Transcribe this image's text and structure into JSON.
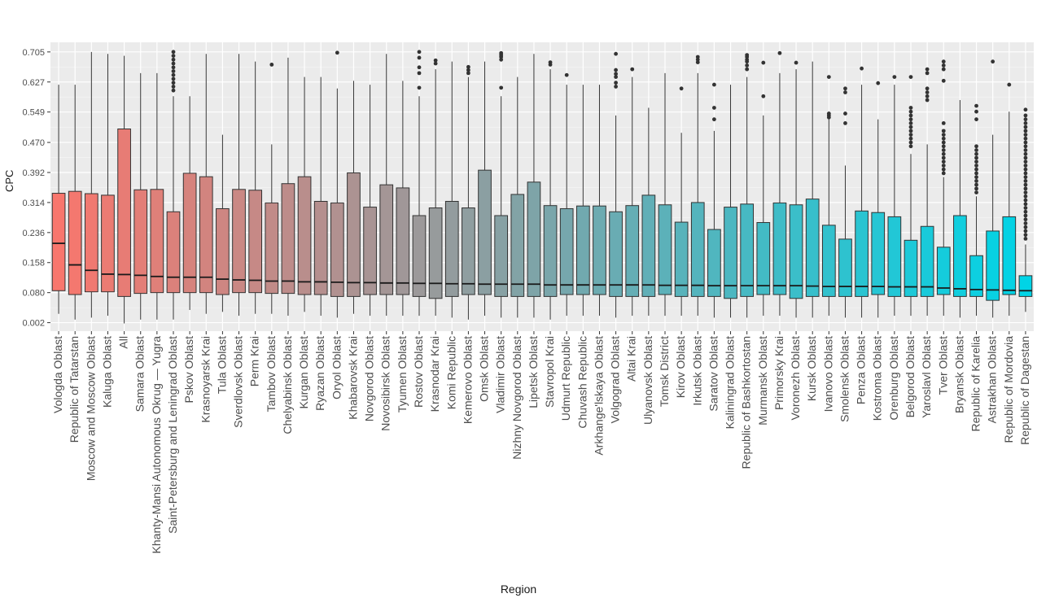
{
  "chart_data": {
    "type": "boxplot",
    "xlabel": "Region",
    "ylabel": "CPC",
    "yticks": [
      "0.002",
      "0.080",
      "0.158",
      "0.236",
      "0.314",
      "0.392",
      "0.470",
      "0.549",
      "0.627",
      "0.705"
    ],
    "ylim": [
      -0.02,
      0.73
    ],
    "fill_gradient": [
      "#f8766d",
      "#00d4e6"
    ],
    "grid": true,
    "legend": "none",
    "series": [
      {
        "category": "Vologda Oblast",
        "min": 0.025,
        "q1": 0.085,
        "median": 0.208,
        "q3": 0.338,
        "max": 0.62,
        "outliers": []
      },
      {
        "category": "Republic of Tatarstan",
        "min": 0.01,
        "q1": 0.075,
        "median": 0.152,
        "q3": 0.343,
        "max": 0.62,
        "outliers": []
      },
      {
        "category": "Moscow and Moscow Oblast",
        "min": 0.015,
        "q1": 0.082,
        "median": 0.138,
        "q3": 0.337,
        "max": 0.705,
        "outliers": []
      },
      {
        "category": "Kaluga Oblast",
        "min": 0.02,
        "q1": 0.082,
        "median": 0.128,
        "q3": 0.333,
        "max": 0.7,
        "outliers": []
      },
      {
        "category": "All",
        "min": 0.0,
        "q1": 0.07,
        "median": 0.127,
        "q3": 0.505,
        "max": 0.695,
        "outliers": []
      },
      {
        "category": "Samara Oblast",
        "min": 0.01,
        "q1": 0.078,
        "median": 0.125,
        "q3": 0.347,
        "max": 0.65,
        "outliers": []
      },
      {
        "category": "Khanty-Mansi Autonomous Okrug — Yugra",
        "min": 0.01,
        "q1": 0.08,
        "median": 0.122,
        "q3": 0.348,
        "max": 0.65,
        "outliers": []
      },
      {
        "category": "Saint-Petersburg and Leningrad Oblast",
        "min": 0.01,
        "q1": 0.08,
        "median": 0.12,
        "q3": 0.29,
        "max": 0.59,
        "outliers": [
          0.605,
          0.615,
          0.625,
          0.635,
          0.645,
          0.655,
          0.665,
          0.675,
          0.685,
          0.695,
          0.705
        ]
      },
      {
        "category": "Pskov Oblast",
        "min": 0.035,
        "q1": 0.08,
        "median": 0.12,
        "q3": 0.39,
        "max": 0.59,
        "outliers": []
      },
      {
        "category": "Krasnoyarsk Krai",
        "min": 0.025,
        "q1": 0.08,
        "median": 0.12,
        "q3": 0.381,
        "max": 0.7,
        "outliers": []
      },
      {
        "category": "Tula Oblast",
        "min": 0.03,
        "q1": 0.075,
        "median": 0.115,
        "q3": 0.298,
        "max": 0.49,
        "outliers": []
      },
      {
        "category": "Sverdlovsk Oblast",
        "min": 0.02,
        "q1": 0.08,
        "median": 0.113,
        "q3": 0.348,
        "max": 0.7,
        "outliers": []
      },
      {
        "category": "Perm Krai",
        "min": 0.025,
        "q1": 0.08,
        "median": 0.112,
        "q3": 0.346,
        "max": 0.68,
        "outliers": []
      },
      {
        "category": "Tambov Oblast",
        "min": 0.025,
        "q1": 0.078,
        "median": 0.11,
        "q3": 0.313,
        "max": 0.465,
        "outliers": [
          0.672
        ]
      },
      {
        "category": "Chelyabinsk Oblast",
        "min": 0.02,
        "q1": 0.078,
        "median": 0.11,
        "q3": 0.363,
        "max": 0.69,
        "outliers": []
      },
      {
        "category": "Kurgan Oblast",
        "min": 0.03,
        "q1": 0.075,
        "median": 0.108,
        "q3": 0.381,
        "max": 0.64,
        "outliers": []
      },
      {
        "category": "Ryazan Oblast",
        "min": 0.02,
        "q1": 0.075,
        "median": 0.108,
        "q3": 0.317,
        "max": 0.64,
        "outliers": []
      },
      {
        "category": "Oryol Oblast",
        "min": 0.015,
        "q1": 0.07,
        "median": 0.107,
        "q3": 0.313,
        "max": 0.61,
        "outliers": [
          0.703
        ]
      },
      {
        "category": "Khabarovsk Krai",
        "min": 0.025,
        "q1": 0.07,
        "median": 0.106,
        "q3": 0.391,
        "max": 0.63,
        "outliers": []
      },
      {
        "category": "Novgorod Oblast",
        "min": 0.02,
        "q1": 0.075,
        "median": 0.106,
        "q3": 0.302,
        "max": 0.62,
        "outliers": []
      },
      {
        "category": "Novosibirsk Oblast",
        "min": 0.02,
        "q1": 0.075,
        "median": 0.105,
        "q3": 0.36,
        "max": 0.7,
        "outliers": []
      },
      {
        "category": "Tyumen Oblast",
        "min": 0.02,
        "q1": 0.075,
        "median": 0.105,
        "q3": 0.352,
        "max": 0.63,
        "outliers": []
      },
      {
        "category": "Rostov Oblast",
        "min": 0.02,
        "q1": 0.07,
        "median": 0.104,
        "q3": 0.28,
        "max": 0.59,
        "outliers": [
          0.612,
          0.65,
          0.665,
          0.69,
          0.705
        ]
      },
      {
        "category": "Krasnodar Krai",
        "min": 0.02,
        "q1": 0.065,
        "median": 0.104,
        "q3": 0.3,
        "max": 0.66,
        "outliers": [
          0.675,
          0.683
        ]
      },
      {
        "category": "Komi Republic",
        "min": 0.015,
        "q1": 0.07,
        "median": 0.103,
        "q3": 0.317,
        "max": 0.68,
        "outliers": []
      },
      {
        "category": "Kemerovo Oblast",
        "min": 0.01,
        "q1": 0.075,
        "median": 0.103,
        "q3": 0.3,
        "max": 0.64,
        "outliers": [
          0.65,
          0.658,
          0.666
        ]
      },
      {
        "category": "Omsk Oblast",
        "min": 0.02,
        "q1": 0.075,
        "median": 0.102,
        "q3": 0.398,
        "max": 0.68,
        "outliers": []
      },
      {
        "category": "Vladimir Oblast",
        "min": 0.015,
        "q1": 0.07,
        "median": 0.102,
        "q3": 0.28,
        "max": 0.59,
        "outliers": [
          0.612,
          0.685,
          0.692,
          0.697,
          0.702
        ]
      },
      {
        "category": "Nizhny Novgorod Oblast",
        "min": 0.015,
        "q1": 0.07,
        "median": 0.102,
        "q3": 0.335,
        "max": 0.64,
        "outliers": []
      },
      {
        "category": "Lipetsk Oblast",
        "min": 0.015,
        "q1": 0.07,
        "median": 0.102,
        "q3": 0.367,
        "max": 0.7,
        "outliers": []
      },
      {
        "category": "Stavropol Krai",
        "min": 0.01,
        "q1": 0.07,
        "median": 0.1,
        "q3": 0.306,
        "max": 0.66,
        "outliers": [
          0.672,
          0.678
        ]
      },
      {
        "category": "Udmurt Republic",
        "min": 0.02,
        "q1": 0.075,
        "median": 0.1,
        "q3": 0.298,
        "max": 0.62,
        "outliers": [
          0.645
        ]
      },
      {
        "category": "Chuvash Republic",
        "min": 0.02,
        "q1": 0.075,
        "median": 0.1,
        "q3": 0.305,
        "max": 0.62,
        "outliers": []
      },
      {
        "category": "Arkhange'lskaya Oblast",
        "min": 0.02,
        "q1": 0.075,
        "median": 0.1,
        "q3": 0.305,
        "max": 0.62,
        "outliers": []
      },
      {
        "category": "Volgograd Oblast",
        "min": 0.015,
        "q1": 0.07,
        "median": 0.1,
        "q3": 0.29,
        "max": 0.54,
        "outliers": [
          0.615,
          0.625,
          0.64,
          0.648,
          0.658,
          0.7
        ]
      },
      {
        "category": "Altai Krai",
        "min": 0.02,
        "q1": 0.07,
        "median": 0.1,
        "q3": 0.306,
        "max": 0.64,
        "outliers": [
          0.66
        ]
      },
      {
        "category": "Ulyanovsk Oblast",
        "min": 0.02,
        "q1": 0.07,
        "median": 0.1,
        "q3": 0.333,
        "max": 0.56,
        "outliers": []
      },
      {
        "category": "Tomsk District",
        "min": 0.02,
        "q1": 0.075,
        "median": 0.099,
        "q3": 0.308,
        "max": 0.65,
        "outliers": []
      },
      {
        "category": "Kirov Oblast",
        "min": 0.02,
        "q1": 0.07,
        "median": 0.099,
        "q3": 0.263,
        "max": 0.495,
        "outliers": [
          0.61
        ]
      },
      {
        "category": "Irkutsk Oblast",
        "min": 0.02,
        "q1": 0.07,
        "median": 0.099,
        "q3": 0.314,
        "max": 0.65,
        "outliers": [
          0.678,
          0.685,
          0.692
        ]
      },
      {
        "category": "Saratov Oblast",
        "min": 0.015,
        "q1": 0.07,
        "median": 0.098,
        "q3": 0.244,
        "max": 0.5,
        "outliers": [
          0.53,
          0.56,
          0.62
        ]
      },
      {
        "category": "Kaliningrad Oblast",
        "min": 0.015,
        "q1": 0.065,
        "median": 0.098,
        "q3": 0.302,
        "max": 0.62,
        "outliers": []
      },
      {
        "category": "Republic of Bashkortostan",
        "min": 0.015,
        "q1": 0.07,
        "median": 0.098,
        "q3": 0.31,
        "max": 0.64,
        "outliers": [
          0.66,
          0.67,
          0.68,
          0.685,
          0.692,
          0.697
        ]
      },
      {
        "category": "Murmansk Oblast",
        "min": 0.02,
        "q1": 0.075,
        "median": 0.098,
        "q3": 0.262,
        "max": 0.54,
        "outliers": [
          0.59,
          0.677
        ]
      },
      {
        "category": "Primorsky Krai",
        "min": 0.02,
        "q1": 0.075,
        "median": 0.098,
        "q3": 0.313,
        "max": 0.65,
        "outliers": [
          0.702
        ]
      },
      {
        "category": "Voronezh Oblast",
        "min": 0.015,
        "q1": 0.065,
        "median": 0.098,
        "q3": 0.308,
        "max": 0.66,
        "outliers": [
          0.677
        ]
      },
      {
        "category": "Kursk Oblast",
        "min": 0.015,
        "q1": 0.07,
        "median": 0.097,
        "q3": 0.323,
        "max": 0.68,
        "outliers": []
      },
      {
        "category": "Ivanovo Oblast",
        "min": 0.02,
        "q1": 0.07,
        "median": 0.096,
        "q3": 0.255,
        "max": 0.53,
        "outliers": [
          0.535,
          0.54,
          0.545,
          0.64
        ]
      },
      {
        "category": "Smolensk Oblast",
        "min": 0.015,
        "q1": 0.07,
        "median": 0.096,
        "q3": 0.219,
        "max": 0.41,
        "outliers": [
          0.52,
          0.545,
          0.6,
          0.61
        ]
      },
      {
        "category": "Penza Oblast",
        "min": 0.015,
        "q1": 0.07,
        "median": 0.096,
        "q3": 0.292,
        "max": 0.62,
        "outliers": [
          0.662
        ]
      },
      {
        "category": "Kostroma Oblast",
        "min": 0.015,
        "q1": 0.075,
        "median": 0.096,
        "q3": 0.288,
        "max": 0.53,
        "outliers": [
          0.624
        ]
      },
      {
        "category": "Orenburg Oblast",
        "min": 0.02,
        "q1": 0.07,
        "median": 0.095,
        "q3": 0.277,
        "max": 0.62,
        "outliers": [
          0.64
        ]
      },
      {
        "category": "Belgorod Oblast",
        "min": 0.02,
        "q1": 0.07,
        "median": 0.095,
        "q3": 0.216,
        "max": 0.44,
        "outliers": [
          0.46,
          0.47,
          0.48,
          0.49,
          0.5,
          0.51,
          0.52,
          0.53,
          0.54,
          0.55,
          0.56,
          0.64
        ]
      },
      {
        "category": "Yaroslavl Oblast",
        "min": 0.02,
        "q1": 0.07,
        "median": 0.095,
        "q3": 0.252,
        "max": 0.465,
        "outliers": [
          0.58,
          0.59,
          0.6,
          0.61,
          0.65,
          0.66
        ]
      },
      {
        "category": "Tver Oblast",
        "min": 0.02,
        "q1": 0.075,
        "median": 0.092,
        "q3": 0.198,
        "max": 0.38,
        "outliers": [
          0.39,
          0.4,
          0.41,
          0.42,
          0.43,
          0.44,
          0.45,
          0.46,
          0.47,
          0.48,
          0.49,
          0.5,
          0.52,
          0.63,
          0.66,
          0.67,
          0.68
        ]
      },
      {
        "category": "Bryansk Oblast",
        "min": 0.015,
        "q1": 0.07,
        "median": 0.09,
        "q3": 0.28,
        "max": 0.58,
        "outliers": []
      },
      {
        "category": "Republic of Karelia",
        "min": 0.02,
        "q1": 0.07,
        "median": 0.088,
        "q3": 0.176,
        "max": 0.33,
        "outliers": [
          0.34,
          0.35,
          0.36,
          0.37,
          0.38,
          0.39,
          0.4,
          0.41,
          0.42,
          0.43,
          0.44,
          0.45,
          0.46,
          0.53,
          0.55,
          0.565
        ]
      },
      {
        "category": "Astrakhan Oblast",
        "min": 0.015,
        "q1": 0.06,
        "median": 0.087,
        "q3": 0.24,
        "max": 0.49,
        "outliers": [
          0.68
        ]
      },
      {
        "category": "Republic of Mordovia",
        "min": 0.02,
        "q1": 0.075,
        "median": 0.086,
        "q3": 0.277,
        "max": 0.55,
        "outliers": [
          0.62
        ]
      },
      {
        "category": "Republic of Dagestan",
        "min": 0.03,
        "q1": 0.07,
        "median": 0.085,
        "q3": 0.124,
        "max": 0.205,
        "outliers": [
          0.22,
          0.23,
          0.24,
          0.25,
          0.26,
          0.27,
          0.28,
          0.29,
          0.3,
          0.31,
          0.32,
          0.33,
          0.34,
          0.35,
          0.36,
          0.37,
          0.38,
          0.39,
          0.4,
          0.41,
          0.42,
          0.43,
          0.44,
          0.45,
          0.46,
          0.47,
          0.48,
          0.49,
          0.5,
          0.51,
          0.52,
          0.53,
          0.54,
          0.555
        ]
      }
    ]
  }
}
